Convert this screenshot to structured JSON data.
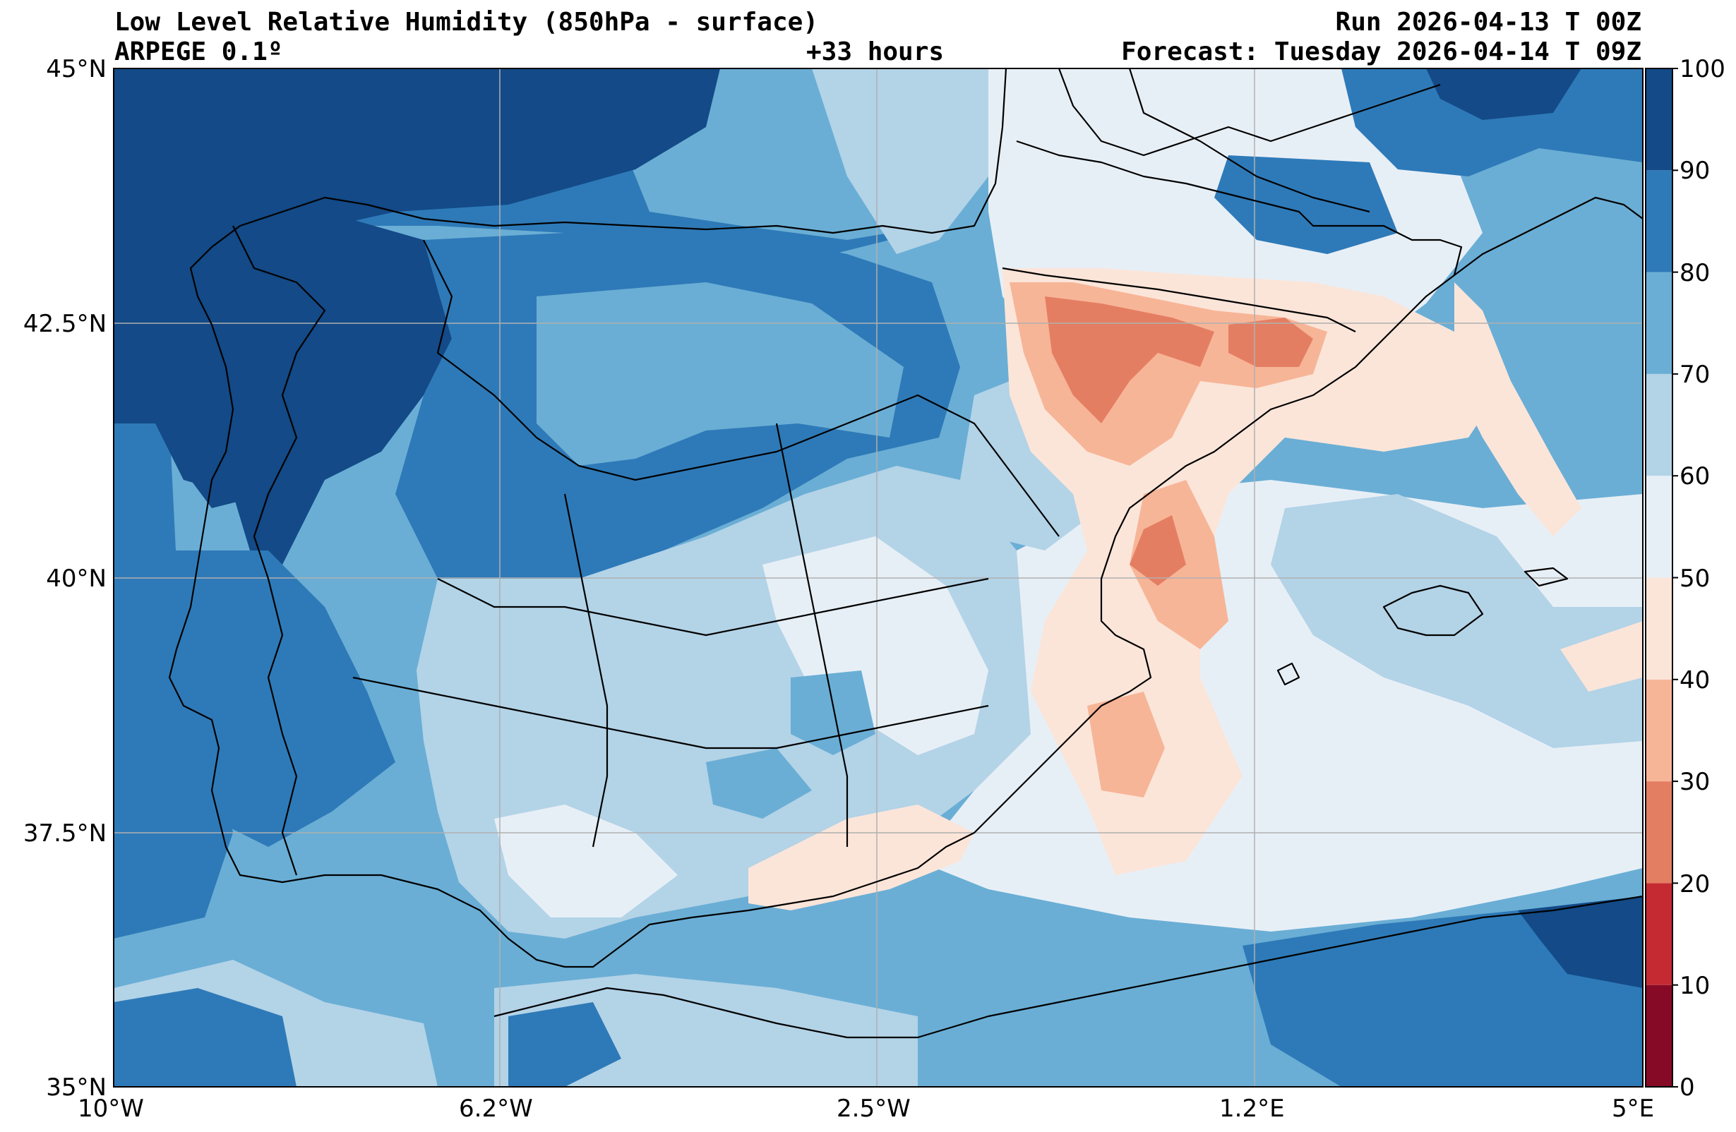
{
  "header": {
    "title": "Low Level Relative Humidity (850hPa - surface)",
    "model": "ARPEGE 0.1º",
    "lead_time": "+33 hours",
    "run": "Run 2026-04-13 T 00Z",
    "forecast": "Forecast: Tuesday 2026-04-14 T 09Z"
  },
  "axes": {
    "lat_labels": [
      "45°N",
      "42.5°N",
      "40°N",
      "37.5°N",
      "35°N"
    ],
    "lon_labels": [
      "10°W",
      "6.2°W",
      "2.5°W",
      "1.2°E",
      "5°E"
    ],
    "lat_range": [
      35,
      45
    ],
    "lon_range": [
      -10,
      5
    ]
  },
  "colorbar": {
    "labels": [
      "100",
      "90",
      "80",
      "70",
      "60",
      "50",
      "40",
      "30",
      "20",
      "10",
      "0"
    ],
    "levels": [
      0,
      10,
      20,
      30,
      40,
      50,
      60,
      70,
      80,
      90,
      100
    ],
    "colors": [
      "#860a26",
      "#c52a32",
      "#e47e63",
      "#f7b597",
      "#fbe5d9",
      "#e7eff6",
      "#b3d3e7",
      "#6aaed5",
      "#2e7ab8",
      "#134a87"
    ]
  },
  "palette": {
    "h95": "#134a87",
    "h85": "#2e7ab8",
    "h75": "#6aaed5",
    "h65": "#b3d3e7",
    "h55": "#e7eff6",
    "h45": "#fbe5d9",
    "h35": "#f7b597",
    "h25": "#e47e63",
    "border": "#000000",
    "grid": "#b0b0b0"
  }
}
